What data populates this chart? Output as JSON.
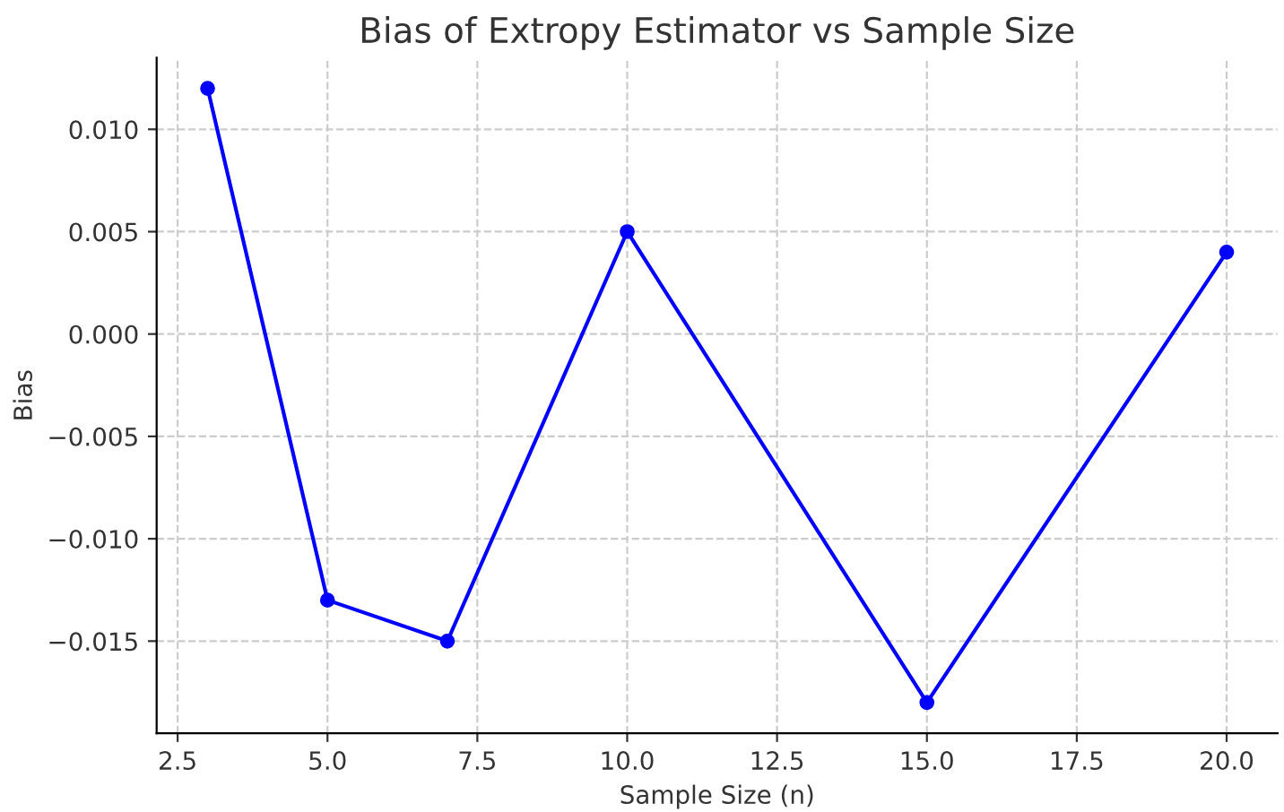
{
  "chart_data": {
    "type": "line",
    "title": "Bias of Extropy Estimator vs Sample Size",
    "xlabel": "Sample Size (n)",
    "ylabel": "Bias",
    "x": [
      3,
      5,
      7,
      10,
      15,
      20
    ],
    "series": [
      {
        "color": "#0000ff",
        "values": [
          0.012,
          -0.013,
          -0.015,
          0.005,
          -0.018,
          0.004
        ]
      }
    ],
    "xlim": [
      2.15,
      20.85
    ],
    "ylim": [
      -0.0195,
      0.0135
    ],
    "xticks": [
      {
        "value": 2.5,
        "label": "2.5"
      },
      {
        "value": 5,
        "label": "5.0"
      },
      {
        "value": 7.5,
        "label": "7.5"
      },
      {
        "value": 10,
        "label": "10.0"
      },
      {
        "value": 12.5,
        "label": "12.5"
      },
      {
        "value": 15,
        "label": "15.0"
      },
      {
        "value": 17.5,
        "label": "17.5"
      },
      {
        "value": 20,
        "label": "20.0"
      }
    ],
    "yticks": [
      {
        "value": -0.015,
        "label": "−0.015"
      },
      {
        "value": -0.01,
        "label": "−0.010"
      },
      {
        "value": -0.005,
        "label": "−0.005"
      },
      {
        "value": 0,
        "label": "0.000"
      },
      {
        "value": 0.005,
        "label": "0.005"
      },
      {
        "value": 0.01,
        "label": "0.010"
      }
    ],
    "grid": true,
    "marker": "circle",
    "line_style": "solid"
  }
}
